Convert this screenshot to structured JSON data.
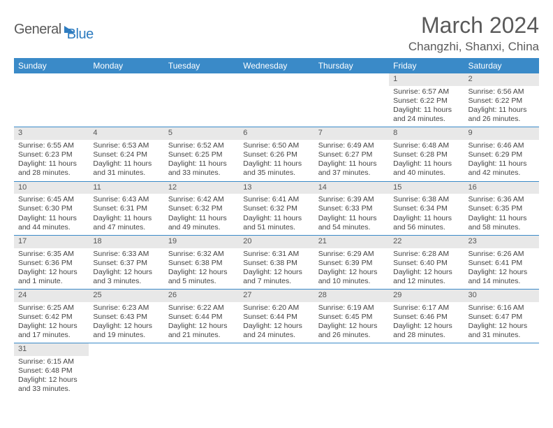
{
  "logo": {
    "text1": "General",
    "text2": "Blue"
  },
  "title": "March 2024",
  "location": "Changzhi, Shanxi, China",
  "colors": {
    "header_bg": "#3a8ac8",
    "header_text": "#ffffff",
    "daynum_bg": "#e8e8e8",
    "border": "#3a8ac8",
    "text": "#444444",
    "title_text": "#5a5a5a"
  },
  "weekdays": [
    "Sunday",
    "Monday",
    "Tuesday",
    "Wednesday",
    "Thursday",
    "Friday",
    "Saturday"
  ],
  "weeks": [
    [
      null,
      null,
      null,
      null,
      null,
      {
        "n": "1",
        "sunrise": "6:57 AM",
        "sunset": "6:22 PM",
        "daylight": "11 hours and 24 minutes."
      },
      {
        "n": "2",
        "sunrise": "6:56 AM",
        "sunset": "6:22 PM",
        "daylight": "11 hours and 26 minutes."
      }
    ],
    [
      {
        "n": "3",
        "sunrise": "6:55 AM",
        "sunset": "6:23 PM",
        "daylight": "11 hours and 28 minutes."
      },
      {
        "n": "4",
        "sunrise": "6:53 AM",
        "sunset": "6:24 PM",
        "daylight": "11 hours and 31 minutes."
      },
      {
        "n": "5",
        "sunrise": "6:52 AM",
        "sunset": "6:25 PM",
        "daylight": "11 hours and 33 minutes."
      },
      {
        "n": "6",
        "sunrise": "6:50 AM",
        "sunset": "6:26 PM",
        "daylight": "11 hours and 35 minutes."
      },
      {
        "n": "7",
        "sunrise": "6:49 AM",
        "sunset": "6:27 PM",
        "daylight": "11 hours and 37 minutes."
      },
      {
        "n": "8",
        "sunrise": "6:48 AM",
        "sunset": "6:28 PM",
        "daylight": "11 hours and 40 minutes."
      },
      {
        "n": "9",
        "sunrise": "6:46 AM",
        "sunset": "6:29 PM",
        "daylight": "11 hours and 42 minutes."
      }
    ],
    [
      {
        "n": "10",
        "sunrise": "6:45 AM",
        "sunset": "6:30 PM",
        "daylight": "11 hours and 44 minutes."
      },
      {
        "n": "11",
        "sunrise": "6:43 AM",
        "sunset": "6:31 PM",
        "daylight": "11 hours and 47 minutes."
      },
      {
        "n": "12",
        "sunrise": "6:42 AM",
        "sunset": "6:32 PM",
        "daylight": "11 hours and 49 minutes."
      },
      {
        "n": "13",
        "sunrise": "6:41 AM",
        "sunset": "6:32 PM",
        "daylight": "11 hours and 51 minutes."
      },
      {
        "n": "14",
        "sunrise": "6:39 AM",
        "sunset": "6:33 PM",
        "daylight": "11 hours and 54 minutes."
      },
      {
        "n": "15",
        "sunrise": "6:38 AM",
        "sunset": "6:34 PM",
        "daylight": "11 hours and 56 minutes."
      },
      {
        "n": "16",
        "sunrise": "6:36 AM",
        "sunset": "6:35 PM",
        "daylight": "11 hours and 58 minutes."
      }
    ],
    [
      {
        "n": "17",
        "sunrise": "6:35 AM",
        "sunset": "6:36 PM",
        "daylight": "12 hours and 1 minute."
      },
      {
        "n": "18",
        "sunrise": "6:33 AM",
        "sunset": "6:37 PM",
        "daylight": "12 hours and 3 minutes."
      },
      {
        "n": "19",
        "sunrise": "6:32 AM",
        "sunset": "6:38 PM",
        "daylight": "12 hours and 5 minutes."
      },
      {
        "n": "20",
        "sunrise": "6:31 AM",
        "sunset": "6:38 PM",
        "daylight": "12 hours and 7 minutes."
      },
      {
        "n": "21",
        "sunrise": "6:29 AM",
        "sunset": "6:39 PM",
        "daylight": "12 hours and 10 minutes."
      },
      {
        "n": "22",
        "sunrise": "6:28 AM",
        "sunset": "6:40 PM",
        "daylight": "12 hours and 12 minutes."
      },
      {
        "n": "23",
        "sunrise": "6:26 AM",
        "sunset": "6:41 PM",
        "daylight": "12 hours and 14 minutes."
      }
    ],
    [
      {
        "n": "24",
        "sunrise": "6:25 AM",
        "sunset": "6:42 PM",
        "daylight": "12 hours and 17 minutes."
      },
      {
        "n": "25",
        "sunrise": "6:23 AM",
        "sunset": "6:43 PM",
        "daylight": "12 hours and 19 minutes."
      },
      {
        "n": "26",
        "sunrise": "6:22 AM",
        "sunset": "6:44 PM",
        "daylight": "12 hours and 21 minutes."
      },
      {
        "n": "27",
        "sunrise": "6:20 AM",
        "sunset": "6:44 PM",
        "daylight": "12 hours and 24 minutes."
      },
      {
        "n": "28",
        "sunrise": "6:19 AM",
        "sunset": "6:45 PM",
        "daylight": "12 hours and 26 minutes."
      },
      {
        "n": "29",
        "sunrise": "6:17 AM",
        "sunset": "6:46 PM",
        "daylight": "12 hours and 28 minutes."
      },
      {
        "n": "30",
        "sunrise": "6:16 AM",
        "sunset": "6:47 PM",
        "daylight": "12 hours and 31 minutes."
      }
    ],
    [
      {
        "n": "31",
        "sunrise": "6:15 AM",
        "sunset": "6:48 PM",
        "daylight": "12 hours and 33 minutes."
      },
      null,
      null,
      null,
      null,
      null,
      null
    ]
  ],
  "labels": {
    "sunrise": "Sunrise:",
    "sunset": "Sunset:",
    "daylight": "Daylight:"
  }
}
